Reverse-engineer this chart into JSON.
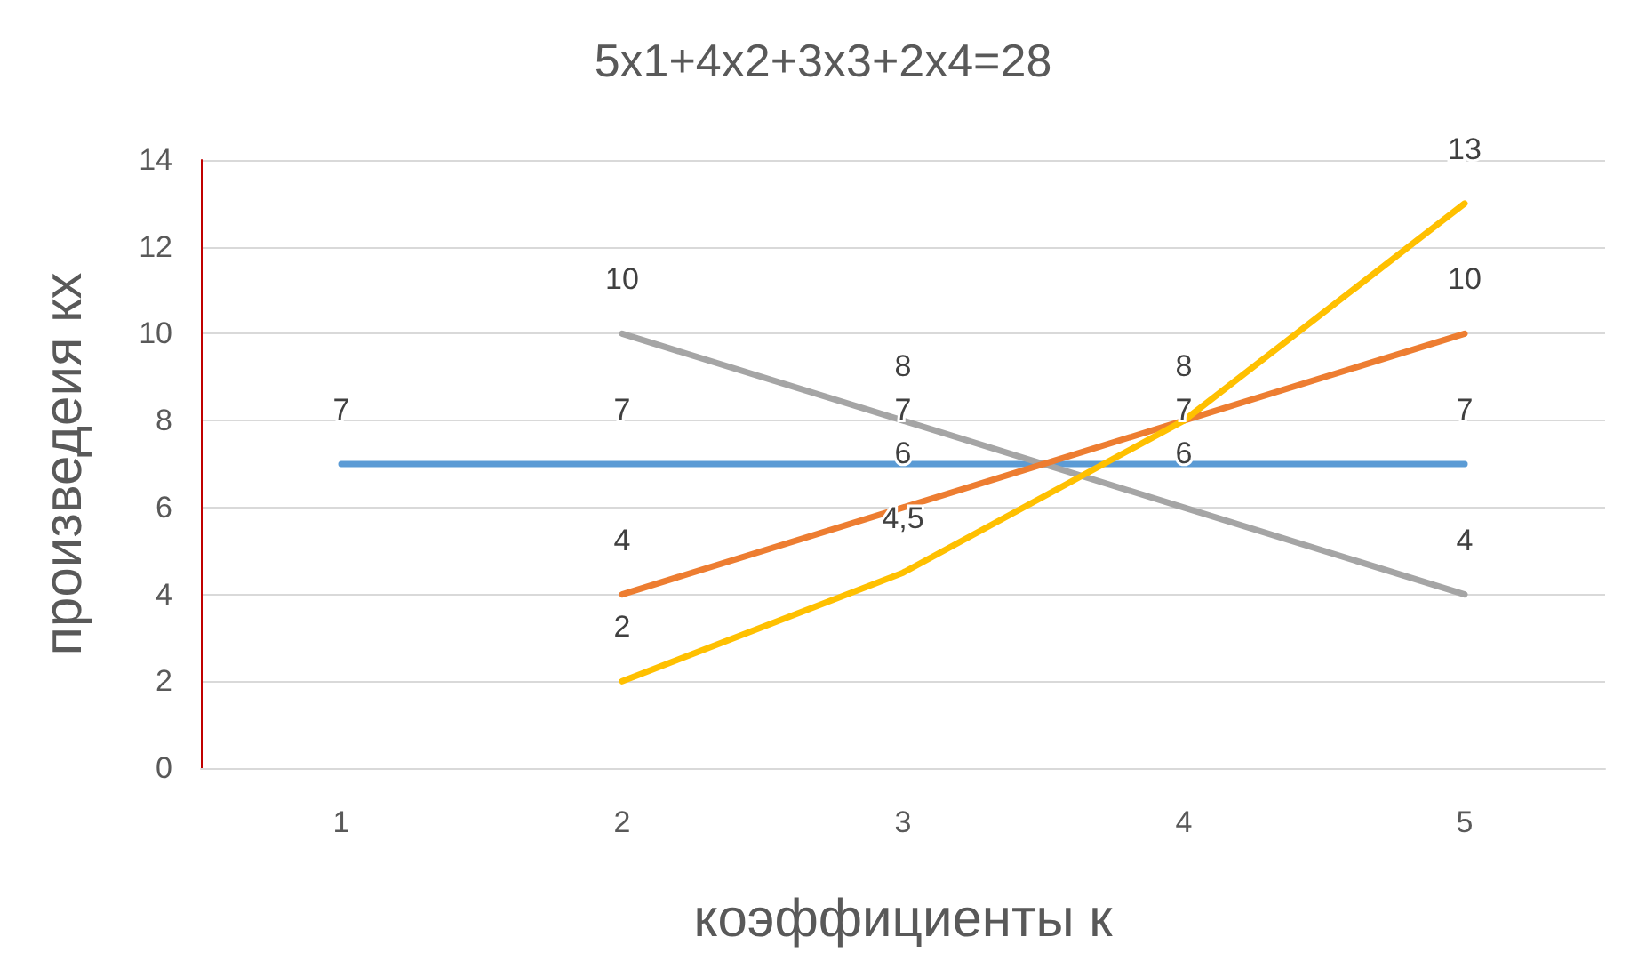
{
  "chart_data": {
    "type": "line",
    "title": "5x1+4x2+3x3+2x4=28",
    "xlabel": "коэффициенты к",
    "ylabel": "произведеия кх",
    "categories": [
      "1",
      "2",
      "3",
      "4",
      "5"
    ],
    "series": [
      {
        "color": "#5b9bd5",
        "values": [
          7,
          7,
          7,
          7,
          7
        ]
      },
      {
        "color": "#a5a5a5",
        "values": [
          null,
          10,
          8,
          6,
          4
        ]
      },
      {
        "color": "#ed7d31",
        "values": [
          null,
          4,
          6,
          8,
          10
        ]
      },
      {
        "color": "#ffc000",
        "values": [
          null,
          2,
          4.5,
          8,
          13
        ],
        "value_labels": [
          null,
          "2",
          "4,5",
          null,
          "13"
        ]
      }
    ],
    "ylim": [
      0,
      14
    ],
    "yticks": [
      0,
      2,
      4,
      6,
      8,
      10,
      12,
      14
    ],
    "grid": "y",
    "marker": "none",
    "line_style": "solid",
    "data_labels": true
  }
}
